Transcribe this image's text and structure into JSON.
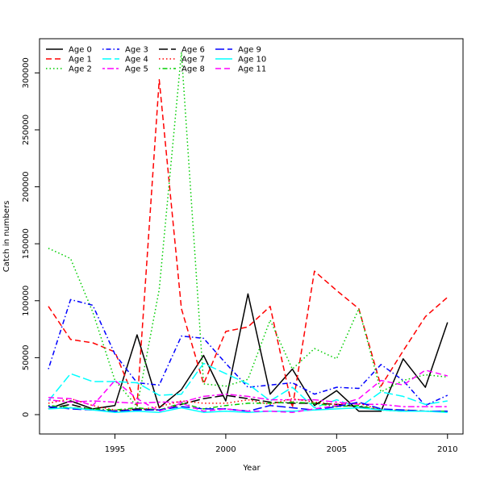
{
  "chart_data": {
    "type": "line",
    "xlabel": "Year",
    "ylabel": "Catch in numbers",
    "xlim": [
      1991.6,
      2010.7
    ],
    "ylim": [
      -17000,
      330000
    ],
    "x_ticks": [
      1995,
      2000,
      2005,
      2010
    ],
    "y_ticks": [
      0,
      50000,
      100000,
      150000,
      200000,
      250000,
      300000
    ],
    "x_tick_labels": [
      "1995",
      "2000",
      "2005",
      "2010"
    ],
    "y_tick_labels": [
      "0",
      "50000",
      "100000",
      "150000",
      "200000",
      "250000",
      "300000"
    ],
    "legend_placement": "top-left",
    "x": [
      1992,
      1993,
      1994,
      1995,
      1996,
      1997,
      1998,
      1999,
      2000,
      2001,
      2002,
      2003,
      2004,
      2005,
      2006,
      2007,
      2008,
      2009,
      2010
    ],
    "series": [
      {
        "name": "Age 0",
        "color": "#000000",
        "dash": "solid",
        "values": [
          5000,
          12000,
          5000,
          8000,
          70000,
          6000,
          22000,
          52000,
          12000,
          106000,
          18000,
          40000,
          8000,
          21000,
          3000,
          3000,
          49000,
          24000,
          81000
        ]
      },
      {
        "name": "Age 1",
        "color": "#ff0000",
        "dash": "dashed",
        "values": [
          95000,
          66000,
          63000,
          55000,
          8000,
          294000,
          93000,
          27000,
          73000,
          77000,
          95000,
          6000,
          126000,
          109000,
          93000,
          25000,
          56000,
          86000,
          103000
        ]
      },
      {
        "name": "Age 2",
        "color": "#00cd00",
        "dash": "dotted",
        "values": [
          146000,
          137000,
          90000,
          30000,
          7000,
          110000,
          318000,
          27000,
          25000,
          31000,
          83000,
          40000,
          58000,
          49000,
          93000,
          20000,
          30000,
          35000,
          33000
        ]
      },
      {
        "name": "Age 3",
        "color": "#0000ff",
        "dash": "dotdash",
        "values": [
          40000,
          101000,
          96000,
          53000,
          28000,
          26000,
          69000,
          67000,
          45000,
          24000,
          26000,
          28000,
          18000,
          24000,
          23000,
          44000,
          30000,
          8000,
          17000
        ]
      },
      {
        "name": "Age 4",
        "color": "#00ffff",
        "dash": "longdash",
        "values": [
          12000,
          36000,
          29000,
          29000,
          28000,
          17000,
          18000,
          45000,
          36000,
          27000,
          12000,
          24000,
          6000,
          13000,
          6000,
          20000,
          16000,
          9000,
          12000
        ]
      },
      {
        "name": "Age 5",
        "color": "#ff00ff",
        "dash": "twodash",
        "values": [
          13000,
          11000,
          12000,
          11000,
          10000,
          11000,
          11000,
          16000,
          18000,
          16000,
          13000,
          13000,
          13000,
          11000,
          9000,
          9000,
          7000,
          7000,
          7000
        ]
      },
      {
        "name": "Age 6",
        "color": "#000000",
        "dash": "longdash",
        "values": [
          5000,
          9000,
          4000,
          3000,
          5000,
          4000,
          9000,
          14000,
          17000,
          14000,
          11000,
          10000,
          10000,
          9000,
          7000,
          4000,
          4000,
          3000,
          3000
        ]
      },
      {
        "name": "Age 7",
        "color": "#ff0000",
        "dash": "dotted",
        "values": [
          10000,
          14000,
          8000,
          4000,
          4000,
          7000,
          12000,
          10000,
          10000,
          13000,
          9000,
          14000,
          11000,
          9000,
          10000,
          4000,
          4000,
          3000,
          3000
        ]
      },
      {
        "name": "Age 8",
        "color": "#00cd00",
        "dash": "dotdash",
        "values": [
          8000,
          6000,
          5000,
          4000,
          6000,
          4000,
          10000,
          5000,
          8000,
          10000,
          10000,
          11000,
          10000,
          7000,
          8000,
          4000,
          3000,
          3000,
          3000
        ]
      },
      {
        "name": "Age 9",
        "color": "#0000ff",
        "dash": "longdash",
        "values": [
          7000,
          5000,
          4000,
          3000,
          4000,
          4000,
          7000,
          5000,
          5000,
          3000,
          8000,
          6000,
          4000,
          7000,
          11000,
          5000,
          4000,
          3000,
          3000
        ]
      },
      {
        "name": "Age 10",
        "color": "#00ffff",
        "dash": "solid",
        "values": [
          5000,
          6000,
          4000,
          2000,
          3000,
          2000,
          6000,
          2000,
          3000,
          2000,
          3000,
          3000,
          4000,
          5000,
          6000,
          4000,
          3000,
          3000,
          2000
        ]
      },
      {
        "name": "Age 11",
        "color": "#ff00ff",
        "dash": "dashed",
        "values": [
          15000,
          14000,
          8000,
          30000,
          14000,
          3000,
          10000,
          3000,
          5000,
          3000,
          3000,
          2000,
          5000,
          8000,
          14000,
          30000,
          26000,
          39000,
          34000
        ]
      }
    ]
  }
}
